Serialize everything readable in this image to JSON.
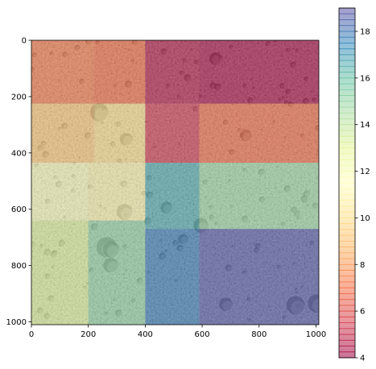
{
  "chart_data": {
    "type": "heatmap",
    "title": "",
    "xlabel": "",
    "ylabel": "",
    "xlim": [
      0,
      1010
    ],
    "ylim": [
      1010,
      0
    ],
    "x_ticks": [
      0,
      200,
      400,
      600,
      800,
      1000
    ],
    "y_ticks": [
      0,
      200,
      400,
      600,
      800,
      1000
    ],
    "colorbar": {
      "colormap": "Spectral",
      "range": [
        4,
        19
      ],
      "ticks": [
        4,
        6,
        8,
        10,
        12,
        14,
        16,
        18
      ],
      "alpha": 0.5
    },
    "background": "grayscale cratered lunar surface image",
    "cells": [
      {
        "x": [
          0,
          220
        ],
        "y": [
          0,
          225
        ],
        "value": 7.3
      },
      {
        "x": [
          220,
          400
        ],
        "y": [
          0,
          225
        ],
        "value": 7.0
      },
      {
        "x": [
          400,
          590
        ],
        "y": [
          0,
          225
        ],
        "value": 4.6
      },
      {
        "x": [
          590,
          1010
        ],
        "y": [
          0,
          225
        ],
        "value": 4.3
      },
      {
        "x": [
          0,
          220
        ],
        "y": [
          225,
          435
        ],
        "value": 9.3
      },
      {
        "x": [
          220,
          400
        ],
        "y": [
          225,
          435
        ],
        "value": 10.0
      },
      {
        "x": [
          400,
          590
        ],
        "y": [
          225,
          435
        ],
        "value": 5.4
      },
      {
        "x": [
          590,
          1010
        ],
        "y": [
          225,
          435
        ],
        "value": 6.9
      },
      {
        "x": [
          0,
          200
        ],
        "y": [
          435,
          640
        ],
        "value": 11.7
      },
      {
        "x": [
          200,
          400
        ],
        "y": [
          435,
          640
        ],
        "value": 11.0
      },
      {
        "x": [
          400,
          590
        ],
        "y": [
          435,
          670
        ],
        "value": 16.6
      },
      {
        "x": [
          590,
          1010
        ],
        "y": [
          435,
          670
        ],
        "value": 14.8
      },
      {
        "x": [
          0,
          200
        ],
        "y": [
          640,
          1010
        ],
        "value": 13.2
      },
      {
        "x": [
          200,
          400
        ],
        "y": [
          640,
          1010
        ],
        "value": 15.0
      },
      {
        "x": [
          400,
          590
        ],
        "y": [
          670,
          1010
        ],
        "value": 17.8
      },
      {
        "x": [
          590,
          1010
        ],
        "y": [
          670,
          1010
        ],
        "value": 18.7
      }
    ]
  }
}
